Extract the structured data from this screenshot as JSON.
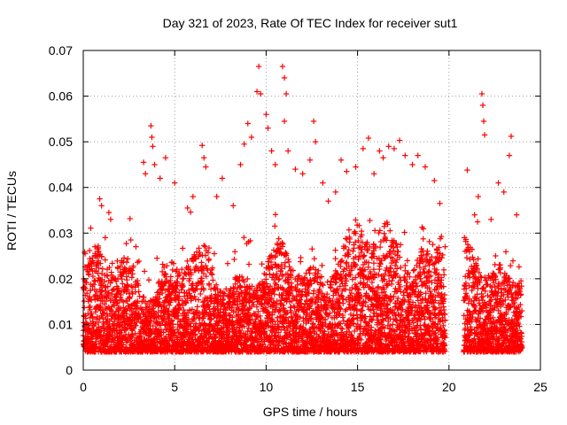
{
  "chart_data": {
    "type": "scatter",
    "title": "Day 321 of 2023, Rate Of TEC Index for receiver sut1",
    "xlabel": "GPS time / hours",
    "ylabel": "ROTI / TECUs",
    "xlim": [
      0,
      25
    ],
    "ylim": [
      0,
      0.07
    ],
    "xticks": [
      0,
      5,
      10,
      15,
      20,
      25
    ],
    "yticks": [
      0,
      0.01,
      0.02,
      0.03,
      0.04,
      0.05,
      0.06,
      0.07
    ],
    "xtick_labels": [
      "0",
      "5",
      "10",
      "15",
      "20",
      "25"
    ],
    "ytick_labels": [
      "0",
      "0.01",
      "0.02",
      "0.03",
      "0.04",
      "0.05",
      "0.06",
      "0.07"
    ],
    "grid": true,
    "marker": "+",
    "color": "#ff0000",
    "data_gaps_hours": [
      [
        19.8,
        20.8
      ]
    ],
    "series": [
      {
        "name": "sut1",
        "points": [
          [
            0.1,
            0.0255
          ],
          [
            0.2,
            0.022
          ],
          [
            0.9,
            0.0375
          ],
          [
            1.0,
            0.036
          ],
          [
            1.4,
            0.0345
          ],
          [
            1.5,
            0.033
          ],
          [
            1.2,
            0.029
          ],
          [
            2.1,
            0.024
          ],
          [
            2.6,
            0.0285
          ],
          [
            3.3,
            0.0455
          ],
          [
            3.4,
            0.043
          ],
          [
            3.7,
            0.0535
          ],
          [
            3.75,
            0.051
          ],
          [
            3.8,
            0.049
          ],
          [
            3.9,
            0.045
          ],
          [
            4.2,
            0.042
          ],
          [
            4.5,
            0.0465
          ],
          [
            5.0,
            0.041
          ],
          [
            5.7,
            0.0355
          ],
          [
            6.0,
            0.038
          ],
          [
            6.5,
            0.0492
          ],
          [
            6.6,
            0.0465
          ],
          [
            6.7,
            0.0445
          ],
          [
            7.3,
            0.038
          ],
          [
            7.6,
            0.042
          ],
          [
            8.2,
            0.036
          ],
          [
            8.6,
            0.045
          ],
          [
            8.8,
            0.0495
          ],
          [
            9.0,
            0.054
          ],
          [
            9.2,
            0.051
          ],
          [
            9.5,
            0.061
          ],
          [
            9.6,
            0.0665
          ],
          [
            9.7,
            0.0605
          ],
          [
            10.0,
            0.056
          ],
          [
            10.1,
            0.053
          ],
          [
            10.3,
            0.048
          ],
          [
            10.5,
            0.045
          ],
          [
            10.9,
            0.0665
          ],
          [
            11.0,
            0.064
          ],
          [
            11.1,
            0.0605
          ],
          [
            11.0,
            0.0545
          ],
          [
            11.2,
            0.048
          ],
          [
            11.6,
            0.044
          ],
          [
            12.0,
            0.043
          ],
          [
            12.4,
            0.046
          ],
          [
            12.6,
            0.0545
          ],
          [
            12.7,
            0.05
          ],
          [
            13.1,
            0.041
          ],
          [
            13.4,
            0.037
          ],
          [
            13.8,
            0.039
          ],
          [
            14.1,
            0.046
          ],
          [
            14.4,
            0.0435
          ],
          [
            14.9,
            0.0445
          ],
          [
            15.3,
            0.0485
          ],
          [
            15.6,
            0.0508
          ],
          [
            15.9,
            0.043
          ],
          [
            16.2,
            0.048
          ],
          [
            16.4,
            0.0465
          ],
          [
            16.7,
            0.049
          ],
          [
            17.0,
            0.0485
          ],
          [
            17.3,
            0.0503
          ],
          [
            17.6,
            0.047
          ],
          [
            18.0,
            0.045
          ],
          [
            18.3,
            0.047
          ],
          [
            18.7,
            0.0445
          ],
          [
            19.2,
            0.0415
          ],
          [
            19.5,
            0.0365
          ],
          [
            21.0,
            0.0438
          ],
          [
            21.4,
            0.034
          ],
          [
            21.6,
            0.038
          ],
          [
            21.8,
            0.0605
          ],
          [
            21.85,
            0.058
          ],
          [
            21.9,
            0.0545
          ],
          [
            21.95,
            0.0515
          ],
          [
            22.3,
            0.033
          ],
          [
            22.7,
            0.041
          ],
          [
            23.0,
            0.039
          ],
          [
            23.3,
            0.047
          ],
          [
            23.4,
            0.0512
          ],
          [
            23.7,
            0.034
          ]
        ]
      }
    ]
  }
}
